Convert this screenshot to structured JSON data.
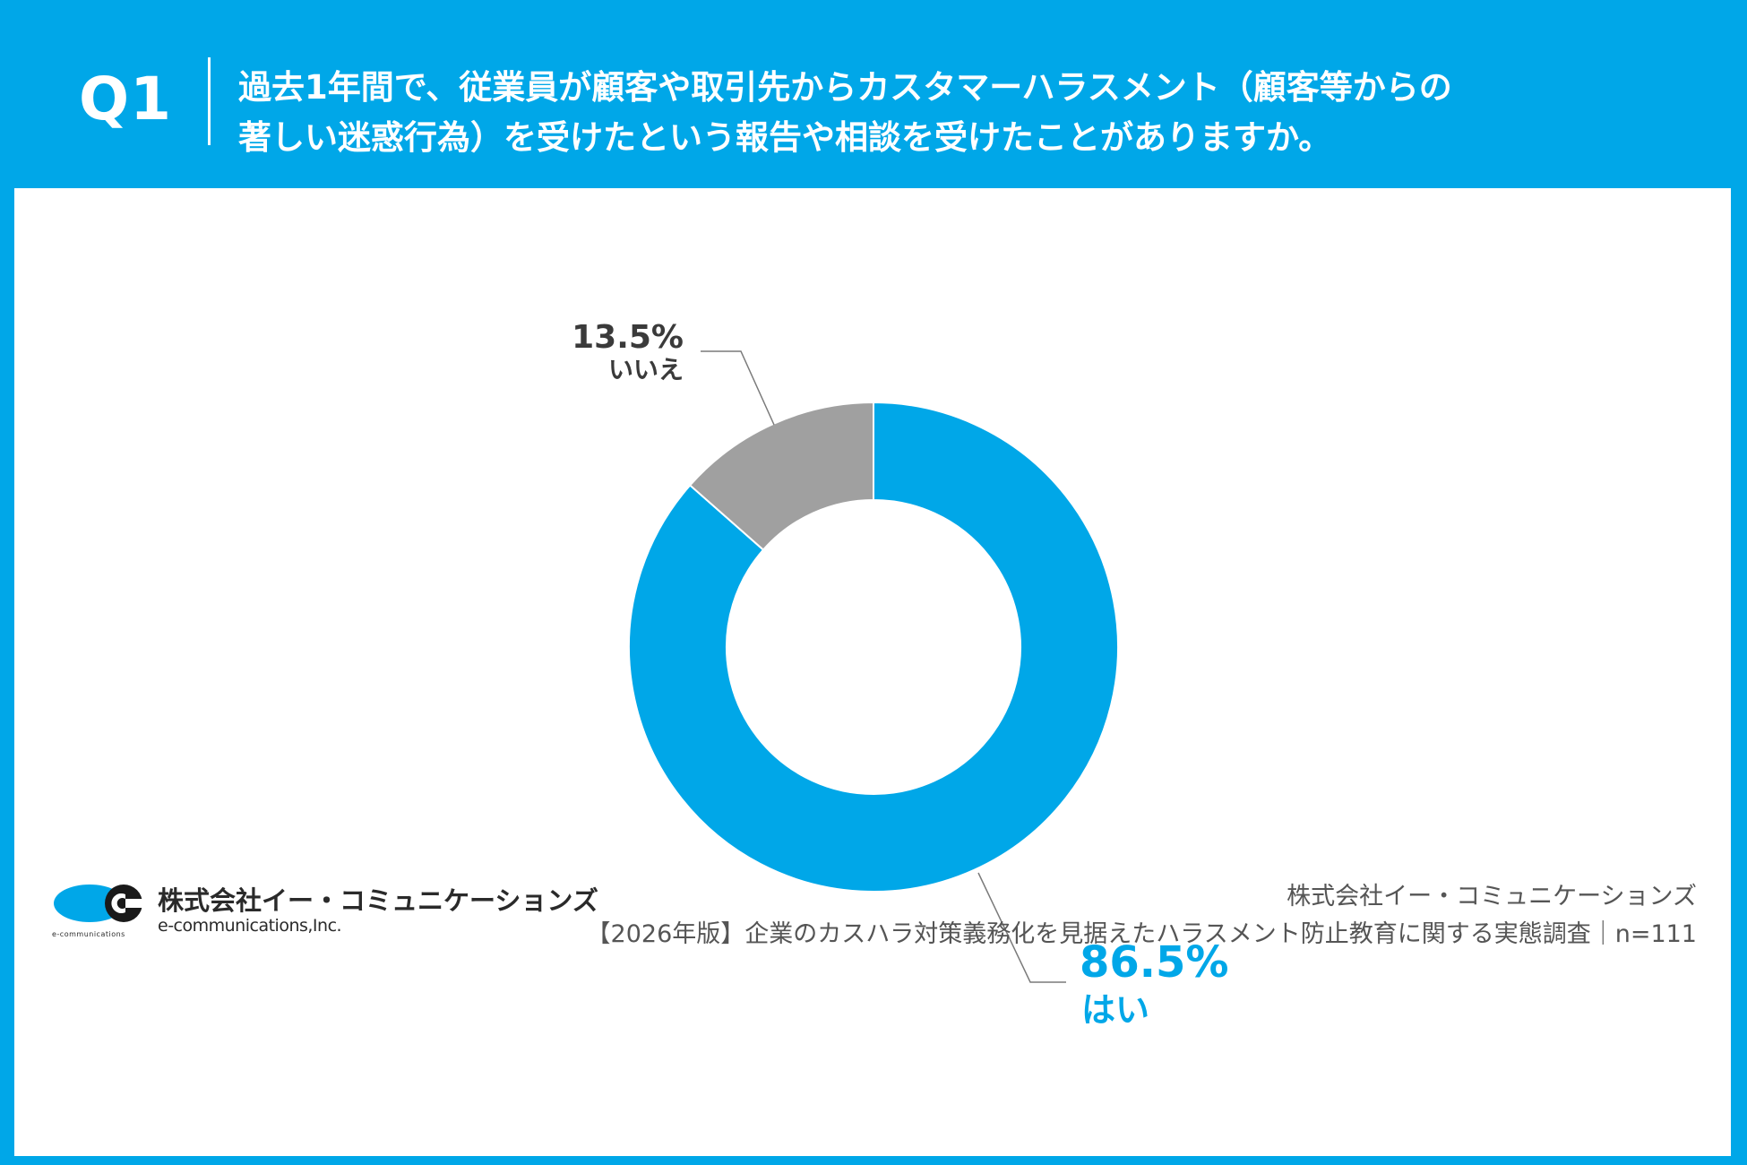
{
  "header": {
    "q_label": "Q1",
    "question_line1": "過去1年間で、従業員が顧客や取引先からカスタマーハラスメント（顧客等からの",
    "question_line2": "著しい迷惑行為）を受けたという報告や相談を受けたことがありますか。"
  },
  "chart_data": {
    "type": "pie",
    "variant": "donut",
    "slices": [
      {
        "label": "はい",
        "value": 86.5,
        "value_label": "86.5%",
        "color": "#00a7e8"
      },
      {
        "label": "いいえ",
        "value": 13.5,
        "value_label": "13.5%",
        "color": "#a0a0a0"
      }
    ],
    "start": "top",
    "direction": "clockwise",
    "n": "n=111"
  },
  "footer": {
    "logo_company_jp": "株式会社イー・コミュニケーションズ",
    "logo_company_en": "e-communications,Inc.",
    "logo_tiny": "e-communications",
    "source_company": "株式会社イー・コミュニケーションズ",
    "source_survey": "【2026年版】企業のカスハラ対策義務化を見据えたハラスメント防止教育に関する実態調査｜n=111"
  },
  "colors": {
    "brand_blue": "#00a7e8",
    "gray_slice": "#a0a0a0",
    "leader_line": "#7a7a7a",
    "dark_text": "#3a3a3a"
  }
}
